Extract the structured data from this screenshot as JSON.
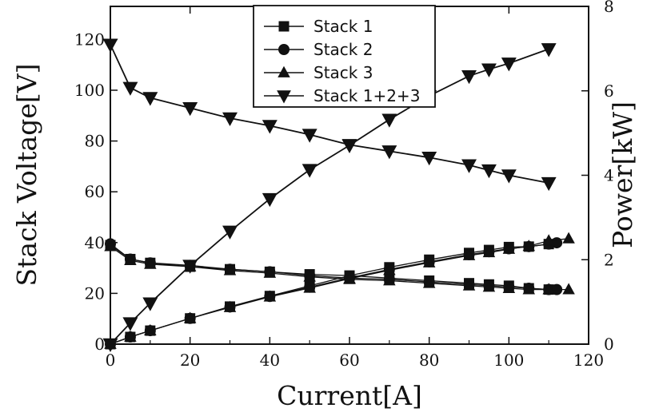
{
  "chart_data": {
    "type": "line",
    "xlabel": "Current[A]",
    "ylabel": "Stack Voltage[V]",
    "y2label": "Power[kW]",
    "xlim": [
      0,
      120
    ],
    "ylim": [
      0,
      130
    ],
    "y2lim": [
      0,
      8
    ],
    "xticks": [
      0,
      20,
      40,
      60,
      80,
      100,
      120
    ],
    "yticks": [
      0,
      20,
      40,
      60,
      80,
      100,
      120
    ],
    "y2ticks": [
      0,
      2,
      4,
      6,
      8
    ],
    "grid": false,
    "legend_position": "top-center",
    "series": [
      {
        "name": "Stack 1",
        "marker": "square",
        "voltage": {
          "x": [
            0,
            5,
            10,
            20,
            30,
            40,
            50,
            60,
            70,
            80,
            90,
            95,
            100,
            105,
            110
          ],
          "y": [
            39,
            33.5,
            32,
            30.5,
            29.5,
            28.5,
            27.5,
            27,
            26,
            25,
            24,
            23.5,
            23,
            22,
            21.5
          ]
        },
        "power": {
          "x": [
            0,
            5,
            10,
            20,
            30,
            40,
            50,
            60,
            70,
            80,
            90,
            95,
            100,
            105,
            110
          ],
          "y": [
            0,
            0.17,
            0.32,
            0.61,
            0.89,
            1.14,
            1.38,
            1.62,
            1.82,
            2.0,
            2.16,
            2.23,
            2.3,
            2.31,
            2.37
          ]
        }
      },
      {
        "name": "Stack 2",
        "marker": "circle",
        "voltage": {
          "x": [
            0,
            5,
            10,
            20,
            30,
            40,
            50,
            60,
            70,
            80,
            90,
            95,
            100,
            105,
            110,
            112
          ],
          "y": [
            39.5,
            33.5,
            32,
            31,
            29.5,
            28.5,
            27,
            26,
            25.5,
            24.5,
            23.5,
            23,
            22.5,
            22,
            21.5,
            21.5
          ]
        },
        "power": {
          "x": [
            0,
            5,
            10,
            20,
            30,
            40,
            50,
            60,
            70,
            80,
            90,
            95,
            100,
            105,
            110,
            112
          ],
          "y": [
            0,
            0.17,
            0.32,
            0.61,
            0.88,
            1.13,
            1.35,
            1.57,
            1.77,
            1.95,
            2.12,
            2.19,
            2.26,
            2.31,
            2.37,
            2.4
          ]
        }
      },
      {
        "name": "Stack 3",
        "marker": "triangle-up",
        "voltage": {
          "x": [
            0,
            5,
            10,
            20,
            30,
            40,
            50,
            60,
            70,
            80,
            90,
            95,
            100,
            105,
            110,
            115
          ],
          "y": [
            38.5,
            33,
            31.5,
            30.5,
            29,
            28,
            26.5,
            25.5,
            25,
            24,
            23,
            22.5,
            22,
            21.5,
            21.5,
            21.5
          ]
        },
        "power": {
          "x": [
            0,
            5,
            10,
            20,
            30,
            40,
            50,
            60,
            70,
            80,
            90,
            95,
            100,
            105,
            110,
            115
          ],
          "y": [
            0,
            0.17,
            0.32,
            0.61,
            0.87,
            1.12,
            1.33,
            1.55,
            1.75,
            1.93,
            2.1,
            2.17,
            2.25,
            2.32,
            2.45,
            2.5
          ]
        }
      },
      {
        "name": "Stack 1+2+3",
        "marker": "triangle-down",
        "voltage": {
          "x": [
            0,
            5,
            10,
            20,
            30,
            40,
            50,
            60,
            70,
            80,
            90,
            95,
            100,
            110
          ],
          "y": [
            118,
            101,
            97,
            93,
            89,
            86,
            82.5,
            78.5,
            76,
            73.5,
            70.5,
            68.5,
            66.5,
            63.5
          ]
        },
        "power": {
          "x": [
            0,
            5,
            10,
            20,
            30,
            40,
            50,
            60,
            70,
            80,
            90,
            95,
            100,
            110
          ],
          "y": [
            0,
            0.5,
            0.97,
            1.86,
            2.67,
            3.44,
            4.13,
            4.71,
            5.32,
            5.88,
            6.35,
            6.51,
            6.65,
            6.99
          ]
        }
      }
    ]
  }
}
